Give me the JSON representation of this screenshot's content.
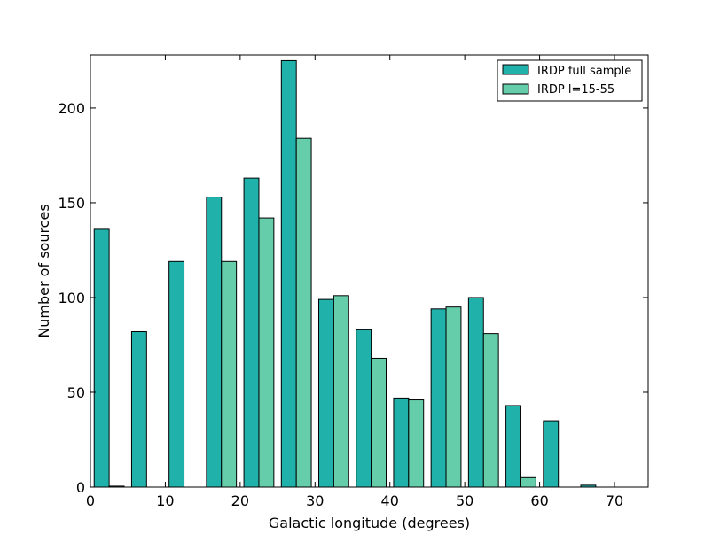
{
  "chart_data": {
    "type": "bar",
    "title": "",
    "xlabel": "Galactic longitude (degrees)",
    "ylabel": "Number of sources",
    "xlim": [
      0,
      74.5
    ],
    "ylim": [
      0,
      228
    ],
    "xticks": [
      0,
      10,
      20,
      30,
      40,
      50,
      60,
      70
    ],
    "yticks": [
      0,
      50,
      100,
      150,
      200
    ],
    "grid": false,
    "legend_position": "top-right",
    "bin_width": 5,
    "bin_starts": [
      0,
      5,
      10,
      15,
      20,
      25,
      30,
      35,
      40,
      45,
      50,
      55,
      60,
      65,
      70
    ],
    "series": [
      {
        "name": "IRDP full sample",
        "color": "#20b2aa",
        "values": [
          136,
          82,
          119,
          153,
          163,
          225,
          99,
          83,
          47,
          94,
          100,
          43,
          35,
          1,
          0
        ]
      },
      {
        "name": "IRDP l=15-55",
        "color": "#66cdaa",
        "values": [
          0.5,
          0,
          0,
          119,
          142,
          184,
          101,
          68,
          46,
          95,
          81,
          5,
          0,
          0,
          0
        ]
      }
    ]
  }
}
